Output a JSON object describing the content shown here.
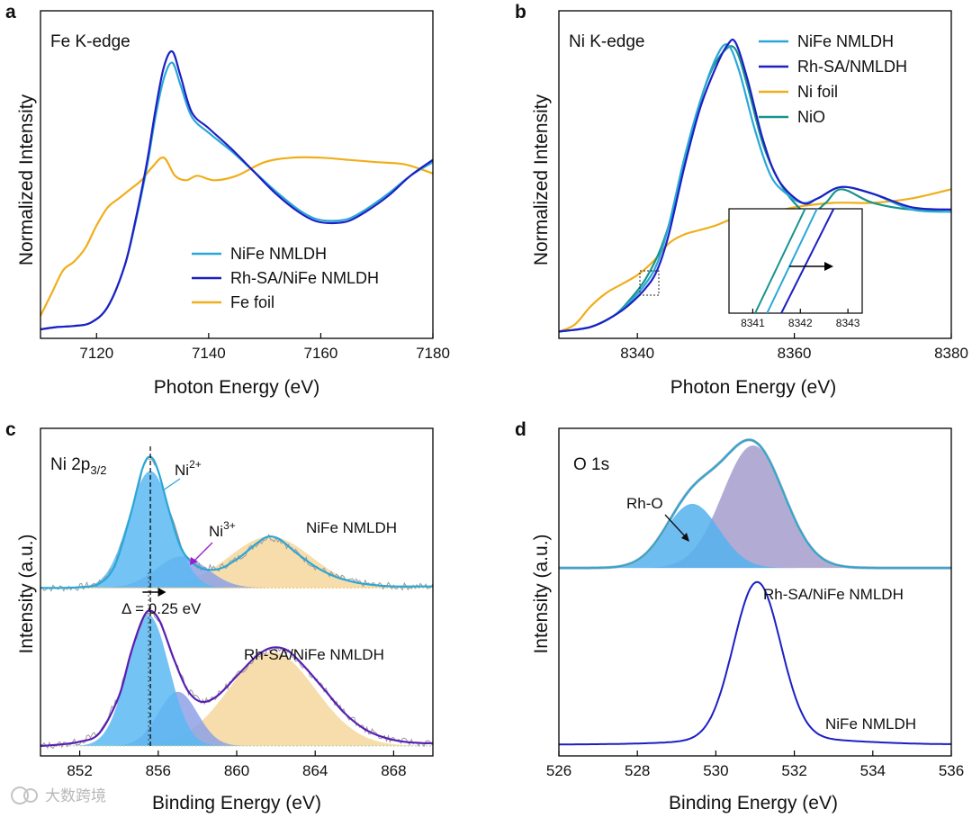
{
  "watermark": "大数跨境",
  "colors": {
    "nife": "#2aa7d8",
    "rh": "#1d1fc4",
    "foil": "#f0ae1a",
    "nio": "#17938d",
    "ni2_fill": "#5bb8f2",
    "ni3_fill": "#8da1e6",
    "sat_fill": "#f6d79c",
    "o1_fill": "#55b1ee",
    "o2_fill": "#a49ccc",
    "raw": "#9a9a9a"
  },
  "chart_data": [
    {
      "id": "a",
      "type": "line",
      "letter": "a",
      "title": "Fe K-edge",
      "xlabel": "Photon Energy (eV)",
      "ylabel": "Normalized Intensity",
      "xlim": [
        7110,
        7180
      ],
      "ylim": [
        0,
        1.45
      ],
      "xticks": [
        "7120",
        "7140",
        "7160",
        "7180"
      ],
      "series": [
        {
          "name": "NiFe NMLDH",
          "color": "#2aa7d8",
          "x": [
            7110,
            7113,
            7116,
            7119,
            7122,
            7125,
            7127,
            7129,
            7130.5,
            7132,
            7133.5,
            7135,
            7137,
            7140,
            7144,
            7148,
            7152,
            7156,
            7159,
            7162,
            7165,
            7168,
            7172,
            7176,
            7180
          ],
          "y": [
            0.04,
            0.05,
            0.055,
            0.07,
            0.14,
            0.32,
            0.52,
            0.76,
            0.98,
            1.15,
            1.22,
            1.12,
            0.98,
            0.91,
            0.83,
            0.74,
            0.65,
            0.57,
            0.53,
            0.52,
            0.53,
            0.57,
            0.64,
            0.72,
            0.78
          ]
        },
        {
          "name": "Rh-SA/NiFe NMLDH",
          "color": "#1d1fc4",
          "x": [
            7110,
            7113,
            7116,
            7119,
            7122,
            7125,
            7127,
            7129,
            7130.5,
            7132,
            7133.5,
            7135,
            7137,
            7140,
            7144,
            7148,
            7152,
            7156,
            7159,
            7162,
            7165,
            7168,
            7172,
            7176,
            7180
          ],
          "y": [
            0.04,
            0.05,
            0.055,
            0.07,
            0.14,
            0.32,
            0.53,
            0.78,
            1.01,
            1.2,
            1.27,
            1.16,
            1.0,
            0.93,
            0.84,
            0.74,
            0.64,
            0.56,
            0.52,
            0.51,
            0.52,
            0.56,
            0.63,
            0.72,
            0.79
          ]
        },
        {
          "name": "Fe foil",
          "color": "#f0ae1a",
          "x": [
            7110,
            7112,
            7114,
            7116,
            7118,
            7120,
            7122,
            7124,
            7126,
            7128,
            7130,
            7132,
            7134,
            7136,
            7138,
            7141,
            7145,
            7150,
            7155,
            7160,
            7165,
            7170,
            7175,
            7180
          ],
          "y": [
            0.1,
            0.2,
            0.3,
            0.34,
            0.4,
            0.5,
            0.58,
            0.62,
            0.66,
            0.7,
            0.76,
            0.8,
            0.72,
            0.7,
            0.72,
            0.7,
            0.72,
            0.78,
            0.8,
            0.8,
            0.79,
            0.78,
            0.77,
            0.73
          ]
        }
      ],
      "legend": [
        "NiFe NMLDH",
        "Rh-SA/NiFe NMLDH",
        "Fe foil"
      ]
    },
    {
      "id": "b",
      "type": "line",
      "letter": "b",
      "title": "Ni K-edge",
      "xlabel": "Photon Energy (eV)",
      "ylabel": "Normalized Intensity",
      "xlim": [
        8330,
        8380
      ],
      "ylim": [
        0,
        1.45
      ],
      "xticks": [
        "8340",
        "8360",
        "8380"
      ],
      "series": [
        {
          "name": "NiFe NMLDH",
          "color": "#2aa7d8",
          "x": [
            8330,
            8334,
            8337,
            8339,
            8341,
            8342.5,
            8344,
            8346,
            8348,
            8350,
            8351.5,
            8353,
            8355,
            8357,
            8359,
            8361,
            8363,
            8366,
            8370,
            8375,
            8380
          ],
          "y": [
            0.03,
            0.05,
            0.1,
            0.16,
            0.24,
            0.33,
            0.5,
            0.8,
            1.05,
            1.24,
            1.3,
            1.18,
            0.92,
            0.72,
            0.64,
            0.6,
            0.62,
            0.67,
            0.64,
            0.57,
            0.56
          ]
        },
        {
          "name": "Rh-SA/NMLDH",
          "color": "#1d1fc4",
          "x": [
            8330,
            8334,
            8337,
            8339,
            8341,
            8342.5,
            8344,
            8346,
            8348,
            8350,
            8351.5,
            8352.5,
            8354,
            8356,
            8358,
            8361,
            8363,
            8366,
            8370,
            8375,
            8380
          ],
          "y": [
            0.03,
            0.05,
            0.1,
            0.15,
            0.22,
            0.3,
            0.46,
            0.76,
            1.02,
            1.2,
            1.3,
            1.31,
            1.15,
            0.88,
            0.7,
            0.6,
            0.62,
            0.67,
            0.64,
            0.58,
            0.57
          ]
        },
        {
          "name": "Ni foil",
          "color": "#f0ae1a",
          "x": [
            8330,
            8332,
            8334,
            8336,
            8338,
            8340,
            8342,
            8344,
            8346,
            8348,
            8350,
            8353,
            8356,
            8360,
            8365,
            8370,
            8375,
            8380
          ],
          "y": [
            0.03,
            0.06,
            0.14,
            0.2,
            0.24,
            0.28,
            0.34,
            0.42,
            0.46,
            0.48,
            0.5,
            0.54,
            0.55,
            0.58,
            0.6,
            0.6,
            0.62,
            0.66
          ]
        },
        {
          "name": "NiO",
          "color": "#17938d",
          "x": [
            8330,
            8334,
            8337,
            8339,
            8341,
            8343,
            8345,
            8347,
            8349,
            8351,
            8352.5,
            8354,
            8356,
            8358,
            8360,
            8362,
            8364,
            8366,
            8370,
            8375,
            8380
          ],
          "y": [
            0.03,
            0.05,
            0.1,
            0.17,
            0.26,
            0.4,
            0.62,
            0.92,
            1.15,
            1.27,
            1.28,
            1.12,
            0.86,
            0.7,
            0.6,
            0.55,
            0.6,
            0.66,
            0.6,
            0.57,
            0.57
          ]
        }
      ],
      "legend": [
        "NiFe NMLDH",
        "Rh-SA/NMLDH",
        "Ni foil",
        "NiO"
      ],
      "inset": {
        "xlim": [
          8340.5,
          8343.3
        ],
        "xticks": [
          "8341",
          "8342",
          "8343"
        ],
        "lines": [
          {
            "name": "NiO",
            "color": "#17938d",
            "x": [
              8341.05,
              8342.1
            ]
          },
          {
            "name": "NiFe NMLDH",
            "color": "#2aa7d8",
            "x": [
              8341.3,
              8342.35
            ]
          },
          {
            "name": "Rh-SA/NMLDH",
            "color": "#1d1fc4",
            "x": [
              8341.6,
              8342.7
            ]
          }
        ]
      }
    },
    {
      "id": "c",
      "type": "line",
      "letter": "c",
      "title": "Ni 2p",
      "title_sub": "3/2",
      "xlabel": "Binding Energy (eV)",
      "ylabel": "Intensity (a.u.)",
      "xlim": [
        850,
        870
      ],
      "ylim": [
        0,
        2.3
      ],
      "xticks": [
        "852",
        "856",
        "860",
        "864",
        "868"
      ],
      "curves": {
        "top_baseline": 1.18,
        "top_envelope": {
          "x": [
            850,
            851,
            852,
            853,
            853.8,
            854.6,
            855.2,
            855.6,
            856,
            856.6,
            857.2,
            858,
            859,
            860,
            861,
            861.6,
            862.2,
            863,
            864,
            865,
            866,
            867,
            868,
            869,
            870
          ],
          "y": [
            1.18,
            1.18,
            1.185,
            1.21,
            1.34,
            1.7,
            2.02,
            2.1,
            2.0,
            1.7,
            1.45,
            1.33,
            1.31,
            1.38,
            1.49,
            1.54,
            1.52,
            1.43,
            1.33,
            1.26,
            1.22,
            1.2,
            1.19,
            1.19,
            1.19
          ]
        },
        "top_ni2": {
          "center": 855.6,
          "height": 0.82,
          "width": 1.1
        },
        "top_ni3": {
          "center": 857.2,
          "height": 0.22,
          "width": 1.3
        },
        "top_sat": {
          "center": 861.7,
          "height": 0.36,
          "width": 2.1
        },
        "bot_baseline": 0.07,
        "bot_envelope": {
          "x": [
            850,
            851,
            852,
            853,
            854,
            854.6,
            855.2,
            855.6,
            856.1,
            856.8,
            857.5,
            858.2,
            859,
            860,
            861,
            861.8,
            862.6,
            863.5,
            864.5,
            865.5,
            866.5,
            867.5,
            868.5,
            869.5,
            870
          ],
          "y": [
            0.07,
            0.08,
            0.1,
            0.16,
            0.42,
            0.72,
            0.96,
            1.02,
            0.94,
            0.68,
            0.46,
            0.38,
            0.42,
            0.56,
            0.7,
            0.76,
            0.74,
            0.62,
            0.46,
            0.3,
            0.19,
            0.13,
            0.1,
            0.09,
            0.09
          ]
        },
        "bot_ni2": {
          "center": 855.5,
          "height": 0.92,
          "width": 1.05
        },
        "bot_ni3": {
          "center": 857.0,
          "height": 0.38,
          "width": 1.0
        },
        "bot_sat": {
          "center": 861.8,
          "height": 0.66,
          "width": 2.2
        }
      },
      "peak_x": 855.6,
      "arrow": [
        855.2,
        856.4
      ],
      "labels": {
        "top": "NiFe NMLDH",
        "bottom": "Rh-SA/NiFe NMLDH",
        "ni2": "Ni",
        "ni2_sup": "2+",
        "ni3": "Ni",
        "ni3_sup": "3+",
        "delta": "Δ = 0.25 eV"
      }
    },
    {
      "id": "d",
      "type": "line",
      "letter": "d",
      "title": "O 1s",
      "xlabel": "Binding Energy (eV)",
      "ylabel": "Intensity (a.u.)",
      "xlim": [
        526,
        536
      ],
      "ylim": [
        0,
        2.3
      ],
      "xticks": [
        "526",
        "528",
        "530",
        "532",
        "534",
        "536"
      ],
      "curves": {
        "top_baseline": 1.32,
        "top_rho": {
          "center": 529.4,
          "height": 0.45,
          "width": 0.68
        },
        "top_main": {
          "center": 530.95,
          "height": 0.86,
          "width": 0.78
        },
        "bot_baseline": 0.08,
        "bot_peak": {
          "center": 531.05,
          "height": 1.1,
          "width": 0.6
        },
        "bot_tail": 0.05
      },
      "labels": {
        "rho": "Rh-O",
        "top": "Rh-SA/NiFe NMLDH",
        "bottom": "NiFe NMLDH"
      }
    }
  ]
}
